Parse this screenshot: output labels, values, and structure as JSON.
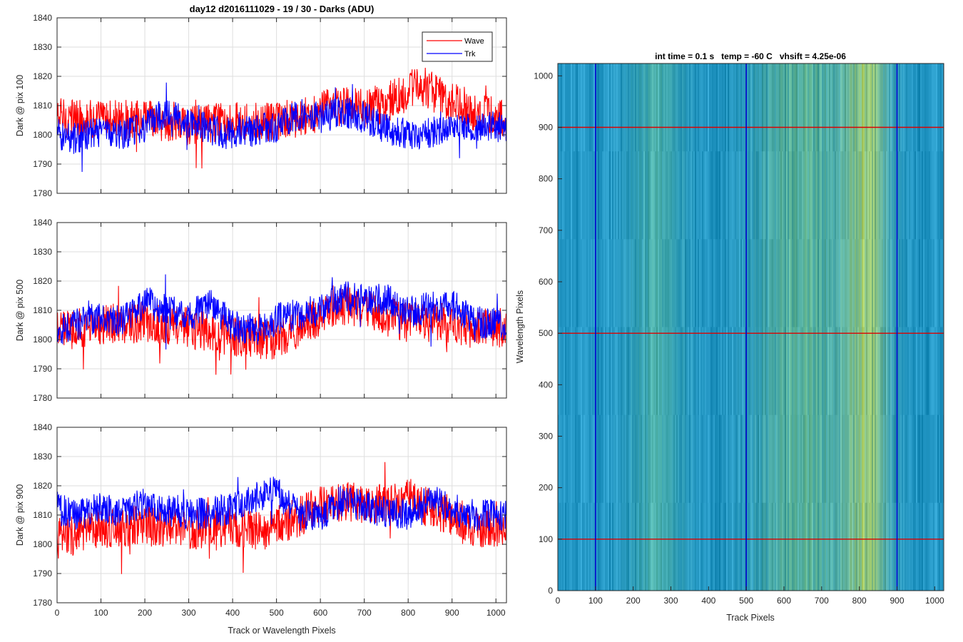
{
  "figure": {
    "title": "day12 d2016111029 - 19 / 30 - Darks (ADU)",
    "bottom_xlabel": "Track or Wavelength Pixels"
  },
  "chart_data": [
    {
      "type": "line",
      "ylabel": "Dark @ pix 100",
      "xlim": [
        0,
        1024
      ],
      "ylim": [
        1780,
        1840
      ],
      "xticks": [
        "0",
        "100",
        "200",
        "300",
        "400",
        "500",
        "600",
        "700",
        "800",
        "900",
        "1000"
      ],
      "yticks": [
        "1780",
        "1790",
        "1800",
        "1810",
        "1820",
        "1830",
        "1840"
      ],
      "grid": true,
      "legend": {
        "placement": "top-right"
      },
      "series": [
        {
          "name": "Wave",
          "color": "#ff0000",
          "baseline": [
            [
              0,
              1806
            ],
            [
              100,
              1805
            ],
            [
              200,
              1805
            ],
            [
              300,
              1803
            ],
            [
              400,
              1805
            ],
            [
              500,
              1804
            ],
            [
              550,
              1806
            ],
            [
              600,
              1808
            ],
            [
              650,
              1810
            ],
            [
              700,
              1809
            ],
            [
              750,
              1811
            ],
            [
              800,
              1815
            ],
            [
              830,
              1817
            ],
            [
              870,
              1813
            ],
            [
              900,
              1812
            ],
            [
              950,
              1808
            ],
            [
              1024,
              1805
            ]
          ],
          "noise": 7,
          "range": [
            1785,
            1838
          ]
        },
        {
          "name": "Trk",
          "color": "#0000ff",
          "baseline": [
            [
              0,
              1800
            ],
            [
              50,
              1799
            ],
            [
              100,
              1801
            ],
            [
              150,
              1800
            ],
            [
              200,
              1803
            ],
            [
              250,
              1808
            ],
            [
              300,
              1804
            ],
            [
              400,
              1800
            ],
            [
              500,
              1803
            ],
            [
              550,
              1807
            ],
            [
              600,
              1806
            ],
            [
              650,
              1808
            ],
            [
              700,
              1806
            ],
            [
              750,
              1802
            ],
            [
              800,
              1800
            ],
            [
              850,
              1801
            ],
            [
              900,
              1803
            ],
            [
              950,
              1802
            ],
            [
              1024,
              1803
            ]
          ],
          "noise": 5.5,
          "range": [
            1781,
            1826
          ]
        }
      ]
    },
    {
      "type": "line",
      "ylabel": "Dark @ pix 500",
      "xlim": [
        0,
        1024
      ],
      "ylim": [
        1780,
        1840
      ],
      "xticks": [
        "0",
        "100",
        "200",
        "300",
        "400",
        "500",
        "600",
        "700",
        "800",
        "900",
        "1000"
      ],
      "yticks": [
        "1780",
        "1790",
        "1800",
        "1810",
        "1820",
        "1830",
        "1840"
      ],
      "grid": true,
      "series": [
        {
          "name": "Wave",
          "color": "#ff0000",
          "baseline": [
            [
              0,
              1803
            ],
            [
              100,
              1805
            ],
            [
              200,
              1806
            ],
            [
              300,
              1804
            ],
            [
              400,
              1801
            ],
            [
              500,
              1800
            ],
            [
              550,
              1804
            ],
            [
              600,
              1808
            ],
            [
              650,
              1812
            ],
            [
              700,
              1810
            ],
            [
              750,
              1808
            ],
            [
              800,
              1806
            ],
            [
              850,
              1806
            ],
            [
              900,
              1805
            ],
            [
              950,
              1804
            ],
            [
              1024,
              1804
            ]
          ],
          "noise": 7,
          "range": [
            1782,
            1837
          ]
        },
        {
          "name": "Trk",
          "color": "#0000ff",
          "baseline": [
            [
              0,
              1803
            ],
            [
              100,
              1808
            ],
            [
              150,
              1806
            ],
            [
              200,
              1813
            ],
            [
              250,
              1810
            ],
            [
              300,
              1808
            ],
            [
              350,
              1812
            ],
            [
              400,
              1805
            ],
            [
              450,
              1803
            ],
            [
              500,
              1807
            ],
            [
              600,
              1810
            ],
            [
              650,
              1815
            ],
            [
              700,
              1813
            ],
            [
              750,
              1814
            ],
            [
              800,
              1809
            ],
            [
              850,
              1811
            ],
            [
              900,
              1812
            ],
            [
              950,
              1806
            ],
            [
              1024,
              1805
            ]
          ],
          "noise": 5.5,
          "range": [
            1789,
            1831
          ]
        }
      ]
    },
    {
      "type": "line",
      "ylabel": "Dark @ pix 900",
      "xlabel": "Track or Wavelength Pixels",
      "xlim": [
        0,
        1024
      ],
      "ylim": [
        1780,
        1840
      ],
      "xticks": [
        "0",
        "100",
        "200",
        "300",
        "400",
        "500",
        "600",
        "700",
        "800",
        "900",
        "1000"
      ],
      "yticks": [
        "1780",
        "1790",
        "1800",
        "1810",
        "1820",
        "1830",
        "1840"
      ],
      "grid": true,
      "series": [
        {
          "name": "Wave",
          "color": "#ff0000",
          "baseline": [
            [
              0,
              1802
            ],
            [
              100,
              1805
            ],
            [
              200,
              1807
            ],
            [
              300,
              1805
            ],
            [
              400,
              1806
            ],
            [
              450,
              1804
            ],
            [
              500,
              1806
            ],
            [
              600,
              1813
            ],
            [
              650,
              1815
            ],
            [
              700,
              1814
            ],
            [
              750,
              1814
            ],
            [
              800,
              1816
            ],
            [
              850,
              1812
            ],
            [
              900,
              1810
            ],
            [
              950,
              1806
            ],
            [
              1024,
              1805
            ]
          ],
          "noise": 7,
          "range": [
            1783,
            1840
          ]
        },
        {
          "name": "Trk",
          "color": "#0000ff",
          "baseline": [
            [
              0,
              1812
            ],
            [
              50,
              1810
            ],
            [
              100,
              1813
            ],
            [
              150,
              1811
            ],
            [
              200,
              1814
            ],
            [
              250,
              1812
            ],
            [
              300,
              1810
            ],
            [
              350,
              1811
            ],
            [
              400,
              1812
            ],
            [
              450,
              1816
            ],
            [
              500,
              1818
            ],
            [
              550,
              1810
            ],
            [
              600,
              1809
            ],
            [
              650,
              1815
            ],
            [
              700,
              1813
            ],
            [
              750,
              1811
            ],
            [
              800,
              1810
            ],
            [
              850,
              1816
            ],
            [
              900,
              1812
            ],
            [
              950,
              1810
            ],
            [
              1024,
              1810
            ]
          ],
          "noise": 5.5,
          "range": [
            1784,
            1836
          ]
        }
      ]
    },
    {
      "type": "heatmap",
      "title": "int time = 0.1 s   temp = -60 C   vhsift = 4.25e-06",
      "xlabel": "Track Pixels",
      "ylabel": "Wavelength Pixels",
      "xlim": [
        0,
        1024
      ],
      "ylim": [
        0,
        1024
      ],
      "xticks": [
        "0",
        "100",
        "200",
        "300",
        "400",
        "500",
        "600",
        "700",
        "800",
        "900",
        "1000"
      ],
      "yticks": [
        "0",
        "100",
        "200",
        "300",
        "400",
        "500",
        "600",
        "700",
        "800",
        "900",
        "1000"
      ],
      "colormap": "parula",
      "base_color": "#2296c4",
      "bright_bands": [
        {
          "center": 810,
          "width": 60,
          "color": "#b8d460"
        },
        {
          "center": 640,
          "width": 110,
          "color": "#6cbc8e"
        },
        {
          "center": 260,
          "width": 70,
          "color": "#4db0a6"
        }
      ],
      "vertical_markers": {
        "x": [
          100,
          500,
          900
        ],
        "color": "#0000cc"
      },
      "horizontal_markers": {
        "y": [
          100,
          500,
          900
        ],
        "color": "#dd0000"
      }
    }
  ]
}
